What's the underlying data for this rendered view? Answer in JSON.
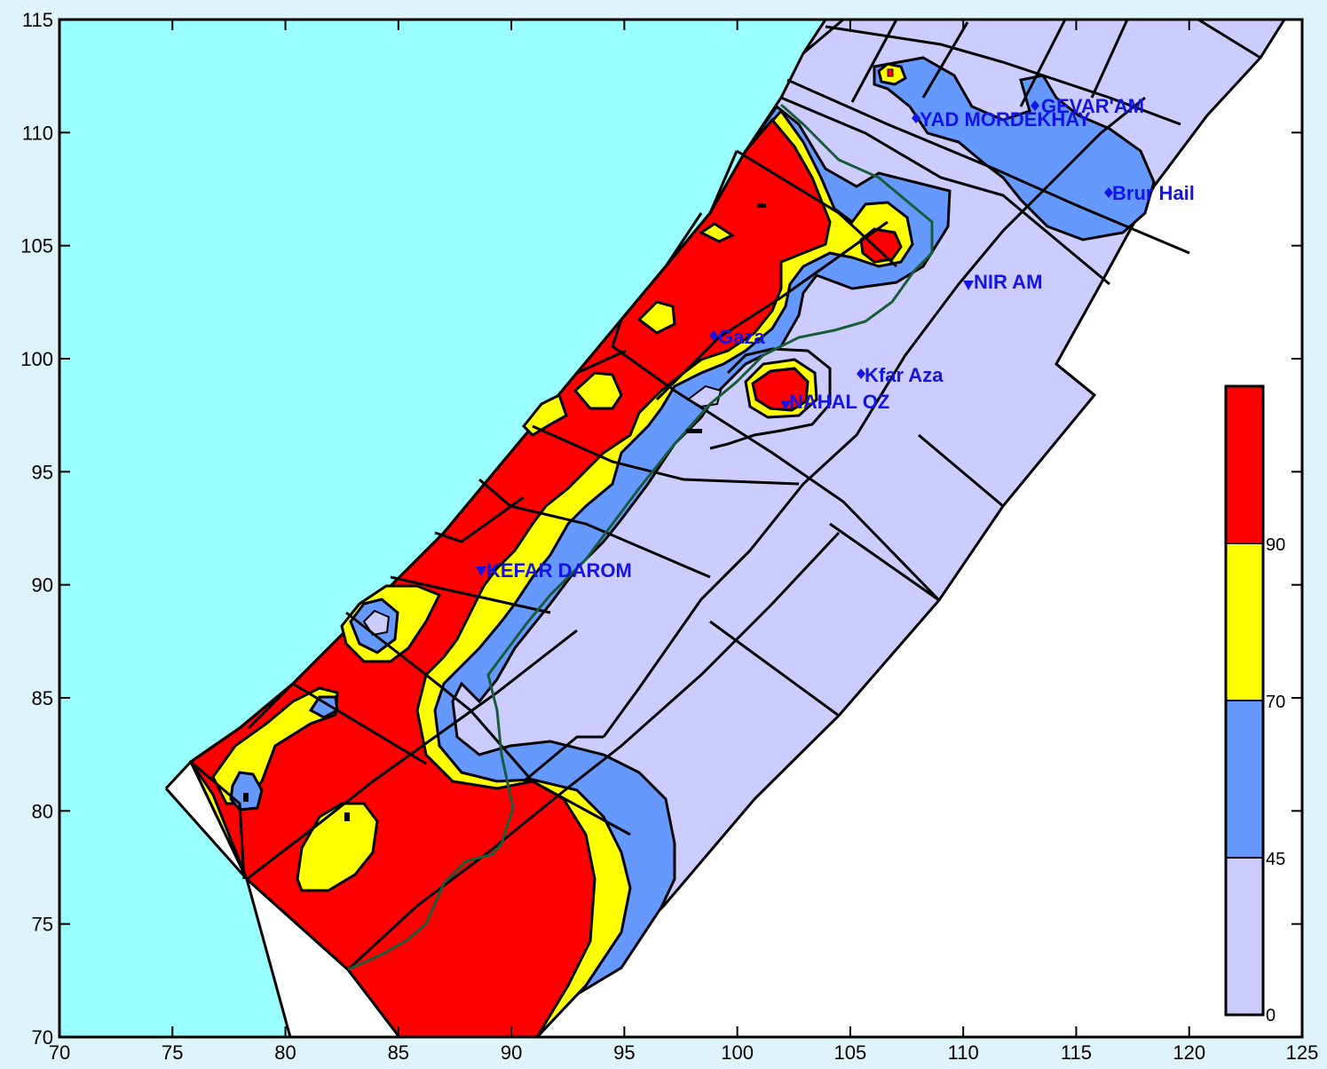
{
  "map": {
    "x_ticks": [
      "70",
      "75",
      "80",
      "85",
      "90",
      "95",
      "100",
      "105",
      "110",
      "115",
      "120",
      "125"
    ],
    "y_ticks": [
      "115",
      "110",
      "105",
      "100",
      "95",
      "90",
      "85",
      "80",
      "75",
      "70"
    ],
    "colors": {
      "sea": "#99ffff",
      "band_0_45": "#ccccff",
      "band_45_70": "#6699ff",
      "band_70_90": "#ffff00",
      "band_90_plus": "#ff0000",
      "outline": "#000000",
      "border_line": "#1a5c3a",
      "label_color": "#1414e6",
      "page_background": "#dff3fb"
    },
    "places": [
      {
        "name": "GEVAR'AM",
        "icon": "diamond-marker-icon"
      },
      {
        "name": "YAD MORDEKHAY",
        "icon": "diamond-marker-icon"
      },
      {
        "name": "Brur Hail",
        "icon": "diamond-marker-icon"
      },
      {
        "name": "NIR AM",
        "icon": "triangle-marker-icon"
      },
      {
        "name": "Gaza",
        "icon": "diamond-marker-icon"
      },
      {
        "name": "Kfar Aza",
        "icon": "diamond-marker-icon"
      },
      {
        "name": "NAHAL OZ",
        "icon": "triangle-marker-icon"
      },
      {
        "name": "KEFAR DAROM",
        "icon": "triangle-marker-icon"
      }
    ],
    "legend": {
      "labels": [
        "90",
        "70",
        "45",
        "0"
      ]
    }
  }
}
